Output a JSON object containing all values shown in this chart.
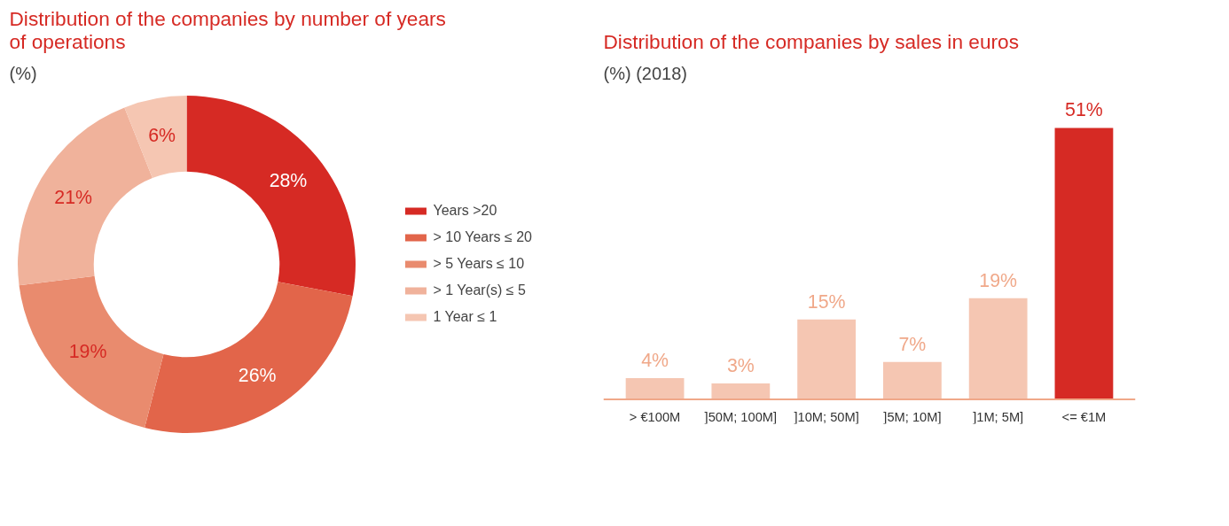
{
  "chart_data": [
    {
      "type": "donut",
      "title": "Distribution of the companies by number of years of operations",
      "subtitle": "(%)",
      "categories": [
        "Years >20",
        "> 10 Years ≤ 20",
        "> 5 Years ≤ 10",
        "> 1 Year(s) ≤ 5",
        "1 Year ≤ 1"
      ],
      "values": [
        28,
        26,
        19,
        21,
        6
      ],
      "colors": [
        "#d62a24",
        "#e2654a",
        "#e98b6e",
        "#f0b29b",
        "#f5c6b2"
      ],
      "value_labels": [
        "28%",
        "26%",
        "19%",
        "21%",
        "6%"
      ],
      "legend": "right"
    },
    {
      "type": "bar",
      "title": "Distribution of the companies by sales in euros",
      "subtitle": "(%) (2018)",
      "categories": [
        "> €100M",
        "]50M; 100M]",
        "]10M; 50M]",
        "]5M; 10M]",
        "]1M; 5M]",
        "<= €1M"
      ],
      "values": [
        4,
        3,
        15,
        7,
        19,
        51
      ],
      "colors": [
        "#f5c6b2",
        "#f5c6b2",
        "#f5c6b2",
        "#f5c6b2",
        "#f5c6b2",
        "#d62a24"
      ],
      "value_labels": [
        "4%",
        "3%",
        "15%",
        "7%",
        "19%",
        "51%"
      ]
    }
  ]
}
